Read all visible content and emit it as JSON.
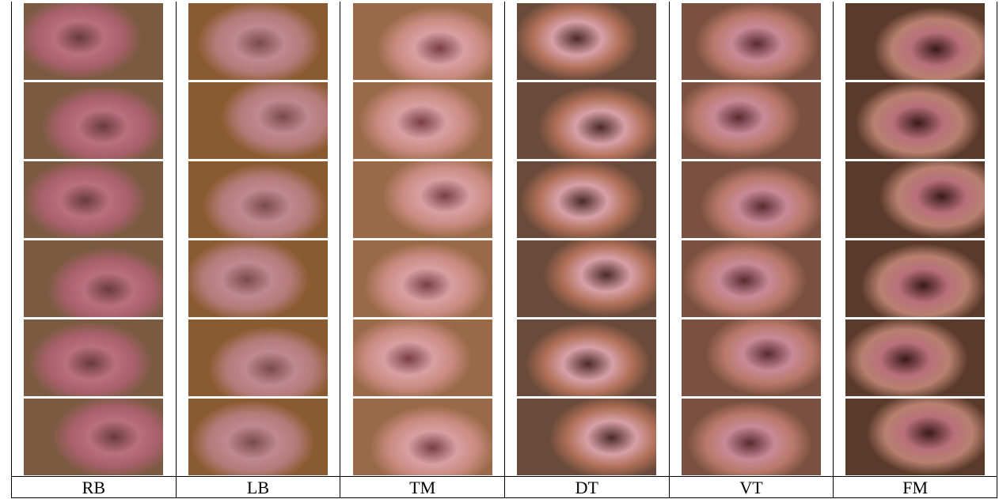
{
  "table": {
    "columns": [
      "RB",
      "LB",
      "TM",
      "DT",
      "VT",
      "FM"
    ]
  }
}
